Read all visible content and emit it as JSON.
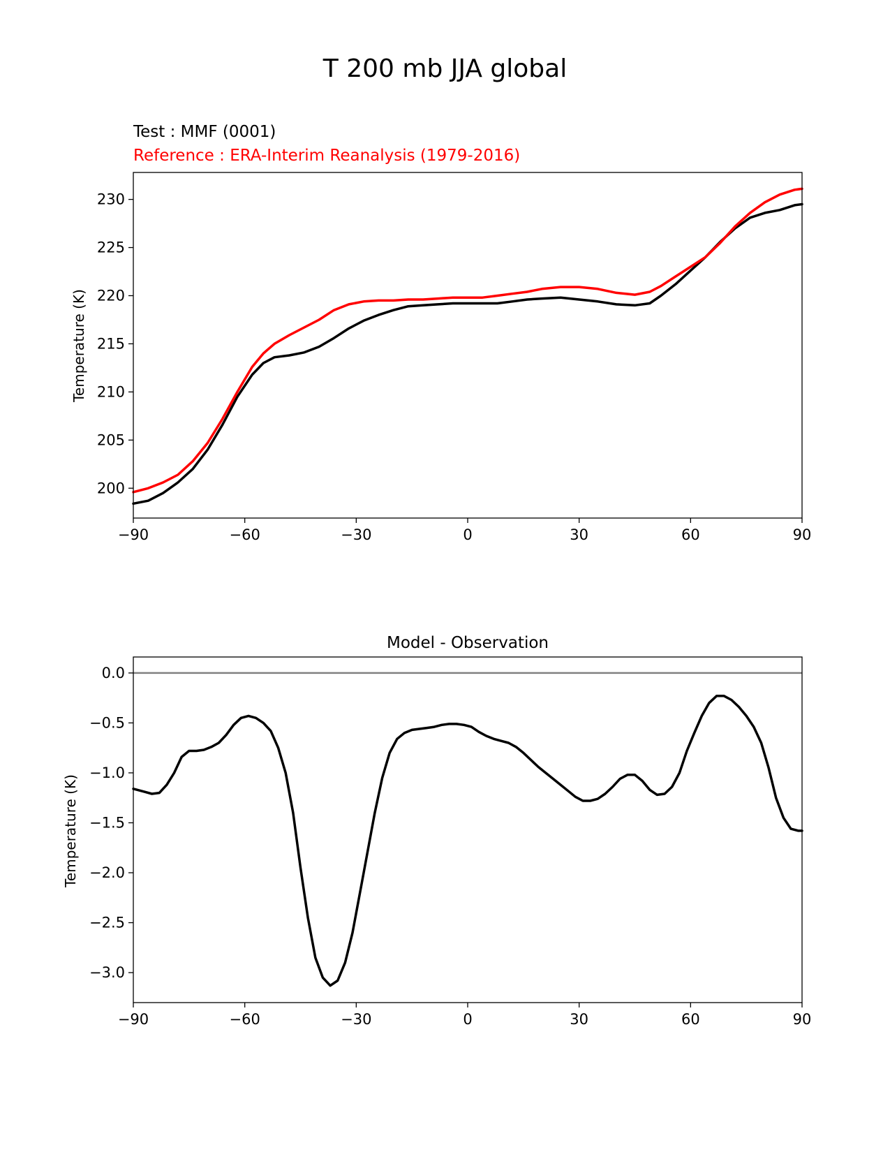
{
  "figure": {
    "title": "T 200 mb JJA global"
  },
  "chart_data": [
    {
      "type": "line",
      "test_label": "Test : MMF (0001)",
      "reference_label": "Reference : ERA-Interim Reanalysis (1979-2016)",
      "ylabel": "Temperature (K)",
      "xlabel": "",
      "xlim": [
        -90,
        90
      ],
      "ylim": [
        196.9,
        232.8
      ],
      "xticks": [
        -90,
        -60,
        -30,
        0,
        30,
        60,
        90
      ],
      "xtick_labels": [
        "−90",
        "−60",
        "−30",
        "0",
        "30",
        "60",
        "90"
      ],
      "yticks": [
        200,
        205,
        210,
        215,
        220,
        225,
        230
      ],
      "ytick_labels": [
        "200",
        "205",
        "210",
        "215",
        "220",
        "225",
        "230"
      ],
      "grid": false,
      "series": [
        {
          "name": "Test : MMF (0001)",
          "color": "#000000",
          "points": [
            [
              -90,
              198.4
            ],
            [
              -86,
              198.7
            ],
            [
              -82,
              199.5
            ],
            [
              -78,
              200.6
            ],
            [
              -74,
              202.0
            ],
            [
              -70,
              204.0
            ],
            [
              -66,
              206.6
            ],
            [
              -62,
              209.5
            ],
            [
              -58,
              211.8
            ],
            [
              -55,
              213.0
            ],
            [
              -52,
              213.6
            ],
            [
              -48,
              213.8
            ],
            [
              -44,
              214.1
            ],
            [
              -40,
              214.7
            ],
            [
              -36,
              215.6
            ],
            [
              -32,
              216.6
            ],
            [
              -28,
              217.4
            ],
            [
              -24,
              218.0
            ],
            [
              -20,
              218.5
            ],
            [
              -16,
              218.9
            ],
            [
              -12,
              219.0
            ],
            [
              -8,
              219.1
            ],
            [
              -4,
              219.2
            ],
            [
              0,
              219.2
            ],
            [
              4,
              219.2
            ],
            [
              8,
              219.2
            ],
            [
              12,
              219.4
            ],
            [
              16,
              219.6
            ],
            [
              20,
              219.7
            ],
            [
              25,
              219.8
            ],
            [
              30,
              219.6
            ],
            [
              35,
              219.4
            ],
            [
              40,
              219.1
            ],
            [
              45,
              219.0
            ],
            [
              49,
              219.2
            ],
            [
              52,
              220.0
            ],
            [
              56,
              221.2
            ],
            [
              60,
              222.6
            ],
            [
              64,
              224.0
            ],
            [
              68,
              225.6
            ],
            [
              72,
              227.0
            ],
            [
              76,
              228.1
            ],
            [
              80,
              228.6
            ],
            [
              84,
              228.9
            ],
            [
              88,
              229.4
            ],
            [
              90,
              229.5
            ]
          ]
        },
        {
          "name": "Reference : ERA-Interim Reanalysis (1979-2016)",
          "color": "#ff0000",
          "points": [
            [
              -90,
              199.6
            ],
            [
              -86,
              200.0
            ],
            [
              -82,
              200.6
            ],
            [
              -78,
              201.4
            ],
            [
              -74,
              202.8
            ],
            [
              -70,
              204.7
            ],
            [
              -66,
              207.2
            ],
            [
              -62,
              210.0
            ],
            [
              -58,
              212.6
            ],
            [
              -55,
              214.0
            ],
            [
              -52,
              215.0
            ],
            [
              -48,
              215.9
            ],
            [
              -44,
              216.7
            ],
            [
              -40,
              217.5
            ],
            [
              -36,
              218.5
            ],
            [
              -32,
              219.1
            ],
            [
              -28,
              219.4
            ],
            [
              -24,
              219.5
            ],
            [
              -20,
              219.5
            ],
            [
              -16,
              219.6
            ],
            [
              -12,
              219.6
            ],
            [
              -8,
              219.7
            ],
            [
              -4,
              219.8
            ],
            [
              0,
              219.8
            ],
            [
              4,
              219.8
            ],
            [
              8,
              220.0
            ],
            [
              12,
              220.2
            ],
            [
              16,
              220.4
            ],
            [
              20,
              220.7
            ],
            [
              25,
              220.9
            ],
            [
              30,
              220.9
            ],
            [
              35,
              220.7
            ],
            [
              40,
              220.3
            ],
            [
              45,
              220.1
            ],
            [
              49,
              220.4
            ],
            [
              52,
              221.0
            ],
            [
              56,
              222.0
            ],
            [
              60,
              223.0
            ],
            [
              64,
              224.0
            ],
            [
              68,
              225.5
            ],
            [
              72,
              227.2
            ],
            [
              76,
              228.6
            ],
            [
              80,
              229.7
            ],
            [
              84,
              230.5
            ],
            [
              88,
              231.0
            ],
            [
              90,
              231.1
            ]
          ]
        }
      ]
    },
    {
      "type": "line",
      "title": "Model - Observation",
      "ylabel": "Temperature (K)",
      "xlabel": "",
      "xlim": [
        -90,
        90
      ],
      "ylim": [
        -3.3,
        0.16
      ],
      "xticks": [
        -90,
        -60,
        -30,
        0,
        30,
        60,
        90
      ],
      "xtick_labels": [
        "−90",
        "−60",
        "−30",
        "0",
        "30",
        "60",
        "90"
      ],
      "yticks": [
        0.0,
        -0.5,
        -1.0,
        -1.5,
        -2.0,
        -2.5,
        -3.0
      ],
      "ytick_labels": [
        "0.0",
        "−0.5",
        "−1.0",
        "−1.5",
        "−2.0",
        "−2.5",
        "−3.0"
      ],
      "grid": false,
      "zero_line_color": "#808080",
      "series": [
        {
          "color": "#000000",
          "points": [
            [
              -90,
              -1.16
            ],
            [
              -87,
              -1.19
            ],
            [
              -85,
              -1.21
            ],
            [
              -83,
              -1.2
            ],
            [
              -81,
              -1.12
            ],
            [
              -79,
              -1.0
            ],
            [
              -77,
              -0.84
            ],
            [
              -75,
              -0.78
            ],
            [
              -73,
              -0.78
            ],
            [
              -71,
              -0.77
            ],
            [
              -69,
              -0.74
            ],
            [
              -67,
              -0.7
            ],
            [
              -65,
              -0.62
            ],
            [
              -63,
              -0.52
            ],
            [
              -61,
              -0.45
            ],
            [
              -59,
              -0.43
            ],
            [
              -57,
              -0.45
            ],
            [
              -55,
              -0.5
            ],
            [
              -53,
              -0.58
            ],
            [
              -51,
              -0.75
            ],
            [
              -49,
              -1.0
            ],
            [
              -47,
              -1.4
            ],
            [
              -45,
              -1.95
            ],
            [
              -43,
              -2.45
            ],
            [
              -41,
              -2.85
            ],
            [
              -39,
              -3.05
            ],
            [
              -37,
              -3.13
            ],
            [
              -35,
              -3.08
            ],
            [
              -33,
              -2.9
            ],
            [
              -31,
              -2.6
            ],
            [
              -29,
              -2.2
            ],
            [
              -27,
              -1.8
            ],
            [
              -25,
              -1.4
            ],
            [
              -23,
              -1.05
            ],
            [
              -21,
              -0.8
            ],
            [
              -19,
              -0.66
            ],
            [
              -17,
              -0.6
            ],
            [
              -15,
              -0.57
            ],
            [
              -13,
              -0.56
            ],
            [
              -11,
              -0.55
            ],
            [
              -9,
              -0.54
            ],
            [
              -7,
              -0.52
            ],
            [
              -5,
              -0.51
            ],
            [
              -3,
              -0.51
            ],
            [
              -1,
              -0.52
            ],
            [
              1,
              -0.54
            ],
            [
              3,
              -0.59
            ],
            [
              5,
              -0.63
            ],
            [
              7,
              -0.66
            ],
            [
              9,
              -0.68
            ],
            [
              11,
              -0.7
            ],
            [
              13,
              -0.74
            ],
            [
              15,
              -0.8
            ],
            [
              17,
              -0.87
            ],
            [
              19,
              -0.94
            ],
            [
              21,
              -1.0
            ],
            [
              23,
              -1.06
            ],
            [
              25,
              -1.12
            ],
            [
              27,
              -1.18
            ],
            [
              29,
              -1.24
            ],
            [
              31,
              -1.28
            ],
            [
              33,
              -1.28
            ],
            [
              35,
              -1.26
            ],
            [
              37,
              -1.21
            ],
            [
              39,
              -1.14
            ],
            [
              41,
              -1.06
            ],
            [
              43,
              -1.02
            ],
            [
              45,
              -1.02
            ],
            [
              47,
              -1.08
            ],
            [
              49,
              -1.17
            ],
            [
              51,
              -1.22
            ],
            [
              53,
              -1.21
            ],
            [
              55,
              -1.14
            ],
            [
              57,
              -1.0
            ],
            [
              59,
              -0.78
            ],
            [
              61,
              -0.6
            ],
            [
              63,
              -0.43
            ],
            [
              65,
              -0.3
            ],
            [
              67,
              -0.23
            ],
            [
              69,
              -0.23
            ],
            [
              71,
              -0.27
            ],
            [
              73,
              -0.34
            ],
            [
              75,
              -0.43
            ],
            [
              77,
              -0.54
            ],
            [
              79,
              -0.7
            ],
            [
              81,
              -0.95
            ],
            [
              83,
              -1.25
            ],
            [
              85,
              -1.45
            ],
            [
              87,
              -1.56
            ],
            [
              89,
              -1.58
            ],
            [
              90,
              -1.58
            ]
          ]
        }
      ]
    }
  ]
}
